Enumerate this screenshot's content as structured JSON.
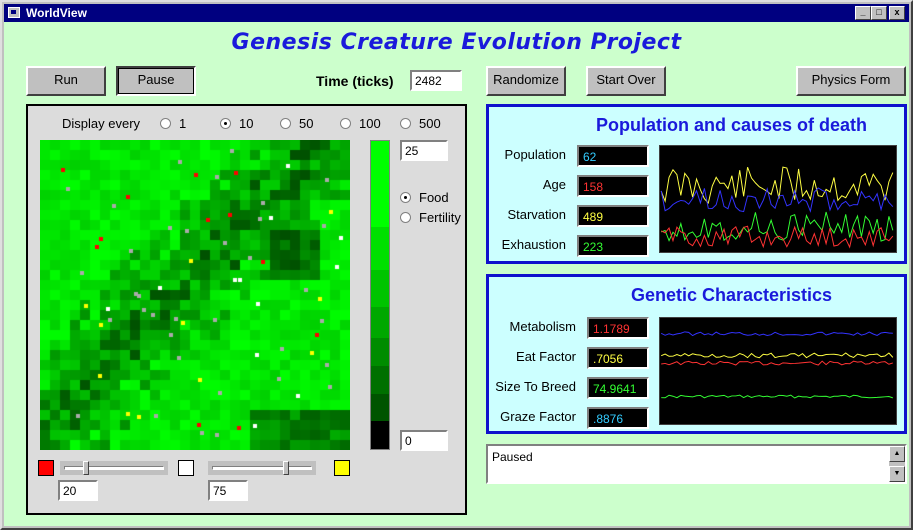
{
  "window": {
    "title": "WorldView",
    "minimize": "_",
    "maximize": "□",
    "close": "x"
  },
  "heading": "Genesis Creature Evolution Project",
  "toolbar": {
    "run": "Run",
    "pause": "Pause",
    "time_label": "Time (ticks)",
    "time_value": "2482",
    "randomize": "Randomize",
    "start_over": "Start Over",
    "physics_form": "Physics Form"
  },
  "display": {
    "label": "Display every",
    "options": [
      "1",
      "10",
      "50",
      "100",
      "500"
    ],
    "selected": "10"
  },
  "map_view": {
    "scale_top_value": "25",
    "scale_bottom_value": "0",
    "layer_options": [
      "Food",
      "Fertility"
    ],
    "selected_layer": "Food",
    "left_slider_value": "20",
    "right_slider_value": "75",
    "left_slider_level": 0.2,
    "right_slider_level": 0.75,
    "colors": {
      "red_swatch": "#ff0000",
      "white_swatch": "#ffffff",
      "yellow_swatch": "#ffff00"
    }
  },
  "population": {
    "title": "Population and causes of death",
    "rows": [
      {
        "label": "Population",
        "value": "62",
        "color": "#33ccff"
      },
      {
        "label": "Age",
        "value": "158",
        "color": "#ff3333"
      },
      {
        "label": "Starvation",
        "value": "489",
        "color": "#ffff44"
      },
      {
        "label": "Exhaustion",
        "value": "223",
        "color": "#33ff33"
      }
    ]
  },
  "genetics": {
    "title": "Genetic Characteristics",
    "rows": [
      {
        "label": "Metabolism",
        "value": "1.1789",
        "color": "#ff3333"
      },
      {
        "label": "Eat Factor",
        "value": ".7056",
        "color": "#ffff44"
      },
      {
        "label": "Size To Breed",
        "value": "74.9641",
        "color": "#33ff33"
      },
      {
        "label": "Graze Factor",
        "value": ".8876",
        "color": "#33ccff"
      }
    ]
  },
  "status": {
    "text": "Paused"
  }
}
